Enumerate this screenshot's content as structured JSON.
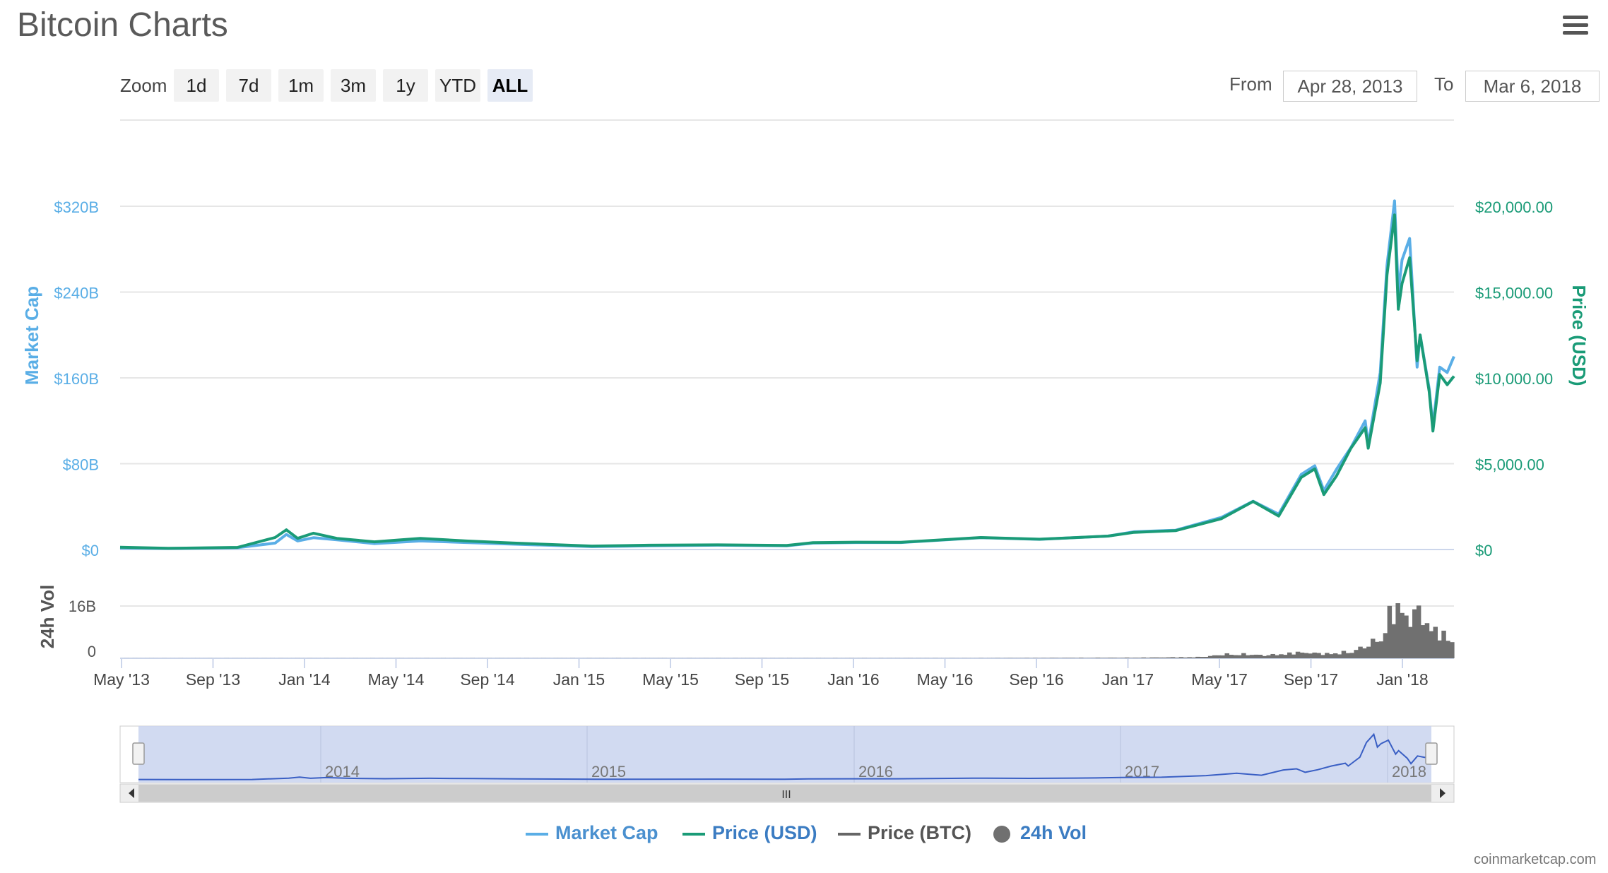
{
  "header": {
    "title": "Bitcoin Charts",
    "menu_icon": "hamburger-menu-icon"
  },
  "toolbar": {
    "zoom_label": "Zoom",
    "zoom_buttons": [
      "1d",
      "7d",
      "1m",
      "3m",
      "1y",
      "YTD",
      "ALL"
    ],
    "active_zoom": "ALL",
    "from_label": "From",
    "from_value": "Apr 28, 2013",
    "to_label": "To",
    "to_value": "Mar 6, 2018"
  },
  "colors": {
    "market_cap": "#5aaee6",
    "price_usd": "#1a9b77",
    "price_btc": "#666666",
    "volume": "#707070",
    "navigator": "#c9d3ee"
  },
  "chart_data": {
    "type": "line",
    "x_axis": {
      "tick_labels": [
        "May '13",
        "Sep '13",
        "Jan '14",
        "May '14",
        "Sep '14",
        "Jan '15",
        "May '15",
        "Sep '15",
        "Jan '16",
        "May '16",
        "Sep '16",
        "Jan '17",
        "May '17",
        "Sep '17",
        "Jan '18"
      ],
      "range": [
        "2013-04-28",
        "2018-03-06"
      ]
    },
    "y_left": {
      "label": "Market Cap",
      "ticks": [
        "$0",
        "$80B",
        "$160B",
        "$240B",
        "$320B"
      ],
      "range": [
        0,
        320
      ]
    },
    "y_right": {
      "label": "Price (USD)",
      "ticks": [
        "$0",
        "$5,000.00",
        "$10,000.00",
        "$15,000.00",
        "$20,000.00"
      ],
      "range": [
        0,
        20000
      ]
    },
    "volume_axis": {
      "label": "24h Vol",
      "ticks": [
        "0",
        "16B"
      ]
    },
    "grid": true,
    "legend_position": "bottom",
    "series": [
      {
        "name": "Market Cap",
        "unit": "USD billions",
        "x": [
          "2013-04-28",
          "2013-07-01",
          "2013-10-01",
          "2013-11-20",
          "2013-12-05",
          "2013-12-20",
          "2014-01-10",
          "2014-02-10",
          "2014-04-01",
          "2014-06-01",
          "2014-08-01",
          "2014-10-01",
          "2015-01-15",
          "2015-04-01",
          "2015-07-01",
          "2015-10-01",
          "2015-11-05",
          "2016-01-01",
          "2016-03-01",
          "2016-06-15",
          "2016-09-01",
          "2016-12-01",
          "2017-01-05",
          "2017-03-01",
          "2017-05-01",
          "2017-06-12",
          "2017-07-16",
          "2017-08-15",
          "2017-09-02",
          "2017-09-14",
          "2017-10-01",
          "2017-10-20",
          "2017-11-08",
          "2017-11-12",
          "2017-11-28",
          "2017-12-07",
          "2017-12-17",
          "2017-12-22",
          "2017-12-27",
          "2018-01-06",
          "2018-01-16",
          "2018-01-20",
          "2018-02-01",
          "2018-02-06",
          "2018-02-15",
          "2018-02-25",
          "2018-03-06"
        ],
        "values": [
          1.5,
          1.0,
          1.7,
          6.0,
          14.0,
          8.0,
          11.0,
          9.0,
          5.5,
          8.0,
          6.5,
          5.0,
          2.7,
          3.4,
          4.0,
          3.5,
          6.0,
          6.5,
          6.5,
          11.0,
          9.5,
          12.5,
          16.5,
          18.0,
          30.0,
          45.0,
          33.0,
          70.0,
          78.0,
          55.0,
          75.0,
          95.0,
          120.0,
          98.0,
          165.0,
          265.0,
          325.0,
          240.0,
          270.0,
          290.0,
          170.0,
          200.0,
          150.0,
          115.0,
          170.0,
          165.0,
          180.0
        ]
      },
      {
        "name": "Price (USD)",
        "unit": "USD",
        "x": [
          "2013-04-28",
          "2013-07-01",
          "2013-10-01",
          "2013-11-20",
          "2013-12-05",
          "2013-12-20",
          "2014-01-10",
          "2014-02-10",
          "2014-04-01",
          "2014-06-01",
          "2014-08-01",
          "2014-10-01",
          "2015-01-15",
          "2015-04-01",
          "2015-07-01",
          "2015-10-01",
          "2015-11-05",
          "2016-01-01",
          "2016-03-01",
          "2016-06-15",
          "2016-09-01",
          "2016-12-01",
          "2017-01-05",
          "2017-03-01",
          "2017-05-01",
          "2017-06-12",
          "2017-07-16",
          "2017-08-15",
          "2017-09-02",
          "2017-09-14",
          "2017-10-01",
          "2017-10-20",
          "2017-11-08",
          "2017-11-12",
          "2017-11-28",
          "2017-12-07",
          "2017-12-17",
          "2017-12-22",
          "2017-12-27",
          "2018-01-06",
          "2018-01-16",
          "2018-01-20",
          "2018-02-01",
          "2018-02-06",
          "2018-02-15",
          "2018-02-25",
          "2018-03-06"
        ],
        "values": [
          135,
          70,
          125,
          700,
          1150,
          650,
          950,
          650,
          450,
          650,
          500,
          380,
          200,
          250,
          270,
          240,
          400,
          430,
          420,
          700,
          600,
          780,
          1000,
          1100,
          1800,
          2800,
          1950,
          4200,
          4700,
          3200,
          4300,
          5900,
          7100,
          5900,
          9700,
          16000,
          19500,
          14000,
          15500,
          17000,
          11000,
          12500,
          9200,
          6900,
          10200,
          9600,
          10100
        ]
      },
      {
        "name": "Price (BTC)",
        "values": []
      },
      {
        "name": "24h Vol",
        "unit": "USD billions",
        "x": [
          "2013-04-28",
          "2016-06-01",
          "2017-01-01",
          "2017-04-01",
          "2017-05-15",
          "2017-07-01",
          "2017-08-15",
          "2017-09-15",
          "2017-10-15",
          "2017-11-10",
          "2017-11-28",
          "2017-12-08",
          "2017-12-15",
          "2017-12-22",
          "2018-01-01",
          "2018-01-15",
          "2018-02-01",
          "2018-02-10",
          "2018-02-25",
          "2018-03-06"
        ],
        "values": [
          0.02,
          0.05,
          0.2,
          0.4,
          1.5,
          1.0,
          2.0,
          1.5,
          2.0,
          4.0,
          7.0,
          13.0,
          15.0,
          19.0,
          13.0,
          16.0,
          11.0,
          9.0,
          7.0,
          5.5
        ]
      }
    ]
  },
  "navigator": {
    "year_labels": [
      "2014",
      "2015",
      "2016",
      "2017",
      "2018"
    ],
    "scrollbar_grip": "III"
  },
  "legend": {
    "items": [
      {
        "label": "Market Cap",
        "color": "#4a90cf",
        "marker": "line"
      },
      {
        "label": "Price (USD)",
        "color": "#1a9b77",
        "marker": "line"
      },
      {
        "label": "Price (BTC)",
        "color": "#555555",
        "marker": "line"
      },
      {
        "label": "24h Vol",
        "color": "#3b7cc2",
        "marker": "circle"
      }
    ]
  },
  "footer": {
    "credit": "coinmarketcap.com"
  }
}
